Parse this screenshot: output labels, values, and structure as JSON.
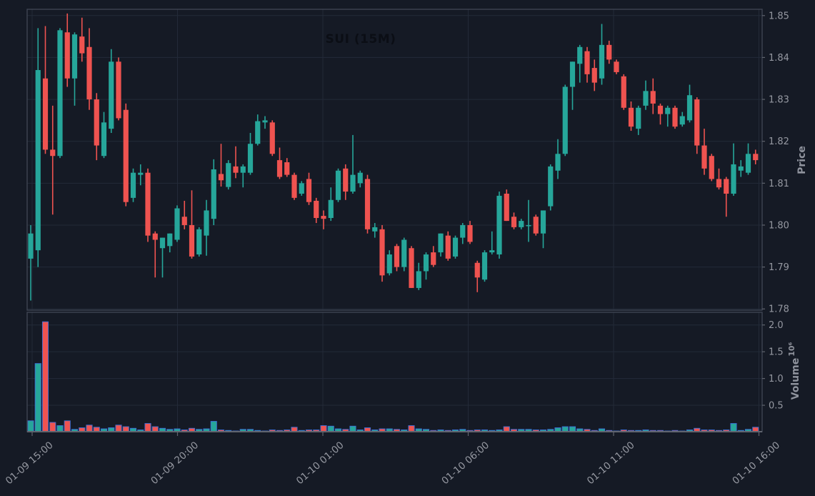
{
  "chart_data": {
    "type": "candlestick",
    "title": "SUI (15M)",
    "symbol": "SUI",
    "interval": "15M",
    "legend_position": "none",
    "grid": true,
    "price_axis": {
      "label": "Price",
      "side": "right",
      "ticks": [
        1.78,
        1.79,
        1.8,
        1.81,
        1.82,
        1.83,
        1.84,
        1.85
      ],
      "range": [
        1.7797,
        1.8515
      ]
    },
    "volume_axis": {
      "label": "Volume",
      "unit": "10⁶",
      "side": "right",
      "ticks": [
        0.5,
        1.0,
        1.5,
        2.0
      ],
      "range": [
        0,
        2.23
      ]
    },
    "time_axis": {
      "ticks": [
        {
          "label": "01-09 15:00",
          "index": 0
        },
        {
          "label": "01-09 20:00",
          "index": 20
        },
        {
          "label": "01-10 01:00",
          "index": 40
        },
        {
          "label": "01-10 06:00",
          "index": 60
        },
        {
          "label": "01-10 11:00",
          "index": 80
        },
        {
          "label": "01-10 16:00",
          "index": 100
        }
      ]
    },
    "colors": {
      "up": "#26a69a",
      "down": "#ef5350",
      "background": "#151a25",
      "grid": "#232a38",
      "spine": "#3e4452",
      "axis_line": "#60646e",
      "axis_text": "#9598a1",
      "title_text": "#0b0e15",
      "volume_bar_edge": "#3d6fd8"
    },
    "columns": [
      "time",
      "open",
      "high",
      "low",
      "close",
      "volume"
    ],
    "candles": [
      [
        "01-09 15:00",
        1.792,
        1.8,
        1.782,
        1.798,
        210000
      ],
      [
        "01-09 15:15",
        1.794,
        1.847,
        1.79,
        1.837,
        1280000
      ],
      [
        "01-09 15:30",
        1.835,
        1.8475,
        1.817,
        1.818,
        2060000
      ],
      [
        "01-09 15:45",
        1.818,
        1.8285,
        1.8025,
        1.8165,
        180000
      ],
      [
        "01-09 16:00",
        1.8165,
        1.847,
        1.816,
        1.8465,
        120000
      ],
      [
        "01-09 16:15",
        1.846,
        1.8505,
        1.833,
        1.835,
        210000
      ],
      [
        "01-09 16:30",
        1.835,
        1.846,
        1.8285,
        1.8455,
        50000
      ],
      [
        "01-09 16:45",
        1.845,
        1.8495,
        1.839,
        1.841,
        80000
      ],
      [
        "01-09 17:00",
        1.8425,
        1.847,
        1.8275,
        1.83,
        130000
      ],
      [
        "01-09 17:15",
        1.83,
        1.8315,
        1.8155,
        1.819,
        90000
      ],
      [
        "01-09 17:30",
        1.8165,
        1.827,
        1.816,
        1.8245,
        60000
      ],
      [
        "01-09 17:45",
        1.823,
        1.842,
        1.822,
        1.839,
        80000
      ],
      [
        "01-09 18:00",
        1.839,
        1.84,
        1.825,
        1.8255,
        130000
      ],
      [
        "01-09 18:15",
        1.8275,
        1.829,
        1.8045,
        1.8055,
        100000
      ],
      [
        "01-09 18:30",
        1.8065,
        1.8135,
        1.8055,
        1.8125,
        70000
      ],
      [
        "01-09 18:45",
        1.812,
        1.8145,
        1.8095,
        1.8125,
        40000
      ],
      [
        "01-09 19:00",
        1.8125,
        1.8135,
        1.796,
        1.7975,
        160000
      ],
      [
        "01-09 19:15",
        1.798,
        1.7985,
        1.7875,
        1.7965,
        100000
      ],
      [
        "01-09 19:30",
        1.7945,
        1.797,
        1.7875,
        1.797,
        70000
      ],
      [
        "01-09 19:45",
        1.795,
        1.798,
        1.7935,
        1.798,
        50000
      ],
      [
        "01-09 20:00",
        1.7965,
        1.8047,
        1.796,
        1.804,
        60000
      ],
      [
        "01-09 20:15",
        1.802,
        1.8058,
        1.799,
        1.8,
        40000
      ],
      [
        "01-09 20:30",
        1.8,
        1.8083,
        1.792,
        1.7925,
        70000
      ],
      [
        "01-09 20:45",
        1.793,
        1.7995,
        1.7925,
        1.799,
        50000
      ],
      [
        "01-09 21:00",
        1.7975,
        1.806,
        1.7927,
        1.8035,
        60000
      ],
      [
        "01-09 21:15",
        1.8015,
        1.8157,
        1.8,
        1.8133,
        200000
      ],
      [
        "01-09 21:30",
        1.8122,
        1.8194,
        1.8092,
        1.8107,
        40000
      ],
      [
        "01-09 21:45",
        1.8091,
        1.8155,
        1.8085,
        1.8148,
        30000
      ],
      [
        "01-09 22:00",
        1.814,
        1.8188,
        1.8112,
        1.8125,
        20000
      ],
      [
        "01-09 22:15",
        1.8125,
        1.8145,
        1.809,
        1.814,
        50000
      ],
      [
        "01-09 22:30",
        1.8125,
        1.822,
        1.812,
        1.8194,
        50000
      ],
      [
        "01-09 22:45",
        1.8194,
        1.8264,
        1.819,
        1.8248,
        30000
      ],
      [
        "01-09 23:00",
        1.8245,
        1.826,
        1.823,
        1.825,
        20000
      ],
      [
        "01-09 23:15",
        1.8245,
        1.825,
        1.8165,
        1.817,
        40000
      ],
      [
        "01-09 23:30",
        1.8155,
        1.8185,
        1.811,
        1.8115,
        30000
      ],
      [
        "01-09 23:45",
        1.815,
        1.816,
        1.8115,
        1.812,
        40000
      ],
      [
        "01-10 00:00",
        1.812,
        1.8125,
        1.806,
        1.8065,
        90000
      ],
      [
        "01-10 00:15",
        1.8075,
        1.8105,
        1.807,
        1.81,
        30000
      ],
      [
        "01-10 00:30",
        1.811,
        1.8125,
        1.8048,
        1.8055,
        40000
      ],
      [
        "01-10 00:45",
        1.8058,
        1.8065,
        1.8005,
        1.8017,
        40000
      ],
      [
        "01-10 01:00",
        1.8022,
        1.8035,
        1.799,
        1.8015,
        120000
      ],
      [
        "01-10 01:15",
        1.8017,
        1.809,
        1.801,
        1.806,
        110000
      ],
      [
        "01-10 01:30",
        1.806,
        1.8135,
        1.8055,
        1.813,
        60000
      ],
      [
        "01-10 01:45",
        1.8135,
        1.8145,
        1.806,
        1.808,
        50000
      ],
      [
        "01-10 02:00",
        1.808,
        1.8215,
        1.8075,
        1.812,
        110000
      ],
      [
        "01-10 02:15",
        1.81,
        1.813,
        1.809,
        1.8125,
        40000
      ],
      [
        "01-10 02:30",
        1.811,
        1.812,
        1.798,
        1.799,
        80000
      ],
      [
        "01-10 02:45",
        1.7985,
        1.8005,
        1.797,
        1.7995,
        40000
      ],
      [
        "01-10 03:00",
        1.799,
        1.8,
        1.7865,
        1.788,
        60000
      ],
      [
        "01-10 03:15",
        1.7885,
        1.794,
        1.788,
        1.793,
        60000
      ],
      [
        "01-10 03:30",
        1.795,
        1.7955,
        1.789,
        1.79,
        50000
      ],
      [
        "01-10 03:45",
        1.79,
        1.797,
        1.789,
        1.7965,
        40000
      ],
      [
        "01-10 04:00",
        1.7945,
        1.795,
        1.785,
        1.785,
        120000
      ],
      [
        "01-10 04:15",
        1.785,
        1.791,
        1.7845,
        1.789,
        60000
      ],
      [
        "01-10 04:30",
        1.789,
        1.7935,
        1.787,
        1.793,
        50000
      ],
      [
        "01-10 04:45",
        1.7935,
        1.795,
        1.79,
        1.7905,
        30000
      ],
      [
        "01-10 05:00",
        1.7935,
        1.798,
        1.7925,
        1.798,
        40000
      ],
      [
        "01-10 05:15",
        1.7975,
        1.7985,
        1.7915,
        1.792,
        30000
      ],
      [
        "01-10 05:30",
        1.7925,
        1.7975,
        1.792,
        1.797,
        40000
      ],
      [
        "01-10 05:45",
        1.797,
        1.8005,
        1.7955,
        1.8,
        50000
      ],
      [
        "01-10 06:00",
        1.8,
        1.801,
        1.7955,
        1.796,
        30000
      ],
      [
        "01-10 06:15",
        1.791,
        1.7915,
        1.784,
        1.7875,
        40000
      ],
      [
        "01-10 06:30",
        1.787,
        1.794,
        1.7865,
        1.7935,
        40000
      ],
      [
        "01-10 06:45",
        1.7935,
        1.7985,
        1.793,
        1.794,
        30000
      ],
      [
        "01-10 07:00",
        1.793,
        1.808,
        1.792,
        1.807,
        40000
      ],
      [
        "01-10 07:15",
        1.8075,
        1.8085,
        1.801,
        1.801,
        100000
      ],
      [
        "01-10 07:30",
        1.802,
        1.803,
        1.799,
        1.7995,
        50000
      ],
      [
        "01-10 07:45",
        1.7995,
        1.8015,
        1.799,
        1.801,
        50000
      ],
      [
        "01-10 08:00",
        1.8,
        1.806,
        1.796,
        1.8,
        50000
      ],
      [
        "01-10 08:15",
        1.802,
        1.8025,
        1.7975,
        1.798,
        40000
      ],
      [
        "01-10 08:30",
        1.798,
        1.8035,
        1.7945,
        1.8035,
        40000
      ],
      [
        "01-10 08:45",
        1.8045,
        1.8145,
        1.8035,
        1.814,
        50000
      ],
      [
        "01-10 09:00",
        1.813,
        1.8205,
        1.811,
        1.817,
        80000
      ],
      [
        "01-10 09:15",
        1.817,
        1.8335,
        1.8165,
        1.833,
        100000
      ],
      [
        "01-10 09:30",
        1.833,
        1.839,
        1.8275,
        1.839,
        100000
      ],
      [
        "01-10 09:45",
        1.8385,
        1.843,
        1.834,
        1.8425,
        60000
      ],
      [
        "01-10 10:00",
        1.8415,
        1.8425,
        1.834,
        1.836,
        50000
      ],
      [
        "01-10 10:15",
        1.8375,
        1.8395,
        1.832,
        1.834,
        30000
      ],
      [
        "01-10 10:30",
        1.835,
        1.848,
        1.8335,
        1.843,
        60000
      ],
      [
        "01-10 10:45",
        1.843,
        1.844,
        1.8385,
        1.8395,
        30000
      ],
      [
        "01-10 11:00",
        1.839,
        1.8395,
        1.836,
        1.8365,
        20000
      ],
      [
        "01-10 11:15",
        1.8355,
        1.836,
        1.8275,
        1.828,
        40000
      ],
      [
        "01-10 11:30",
        1.828,
        1.8295,
        1.8225,
        1.8235,
        30000
      ],
      [
        "01-10 11:45",
        1.823,
        1.8285,
        1.8215,
        1.828,
        30000
      ],
      [
        "01-10 12:00",
        1.8285,
        1.8345,
        1.8275,
        1.832,
        40000
      ],
      [
        "01-10 12:15",
        1.832,
        1.835,
        1.8265,
        1.829,
        30000
      ],
      [
        "01-10 12:30",
        1.8285,
        1.829,
        1.824,
        1.8265,
        30000
      ],
      [
        "01-10 12:45",
        1.8265,
        1.8285,
        1.8235,
        1.828,
        20000
      ],
      [
        "01-10 13:00",
        1.828,
        1.8285,
        1.823,
        1.8235,
        30000
      ],
      [
        "01-10 13:15",
        1.824,
        1.827,
        1.8235,
        1.826,
        20000
      ],
      [
        "01-10 13:30",
        1.825,
        1.8335,
        1.8245,
        1.831,
        40000
      ],
      [
        "01-10 13:45",
        1.83,
        1.8305,
        1.817,
        1.819,
        70000
      ],
      [
        "01-10 14:00",
        1.819,
        1.823,
        1.812,
        1.8135,
        40000
      ],
      [
        "01-10 14:15",
        1.8165,
        1.817,
        1.8105,
        1.811,
        40000
      ],
      [
        "01-10 14:30",
        1.811,
        1.8135,
        1.8085,
        1.809,
        30000
      ],
      [
        "01-10 14:45",
        1.811,
        1.8115,
        1.802,
        1.8075,
        40000
      ],
      [
        "01-10 15:00",
        1.8075,
        1.8195,
        1.807,
        1.8145,
        160000
      ],
      [
        "01-10 15:15",
        1.813,
        1.8155,
        1.8115,
        1.814,
        30000
      ],
      [
        "01-10 15:30",
        1.8125,
        1.8195,
        1.812,
        1.817,
        50000
      ],
      [
        "01-10 15:45",
        1.817,
        1.818,
        1.8145,
        1.8155,
        90000
      ]
    ]
  }
}
